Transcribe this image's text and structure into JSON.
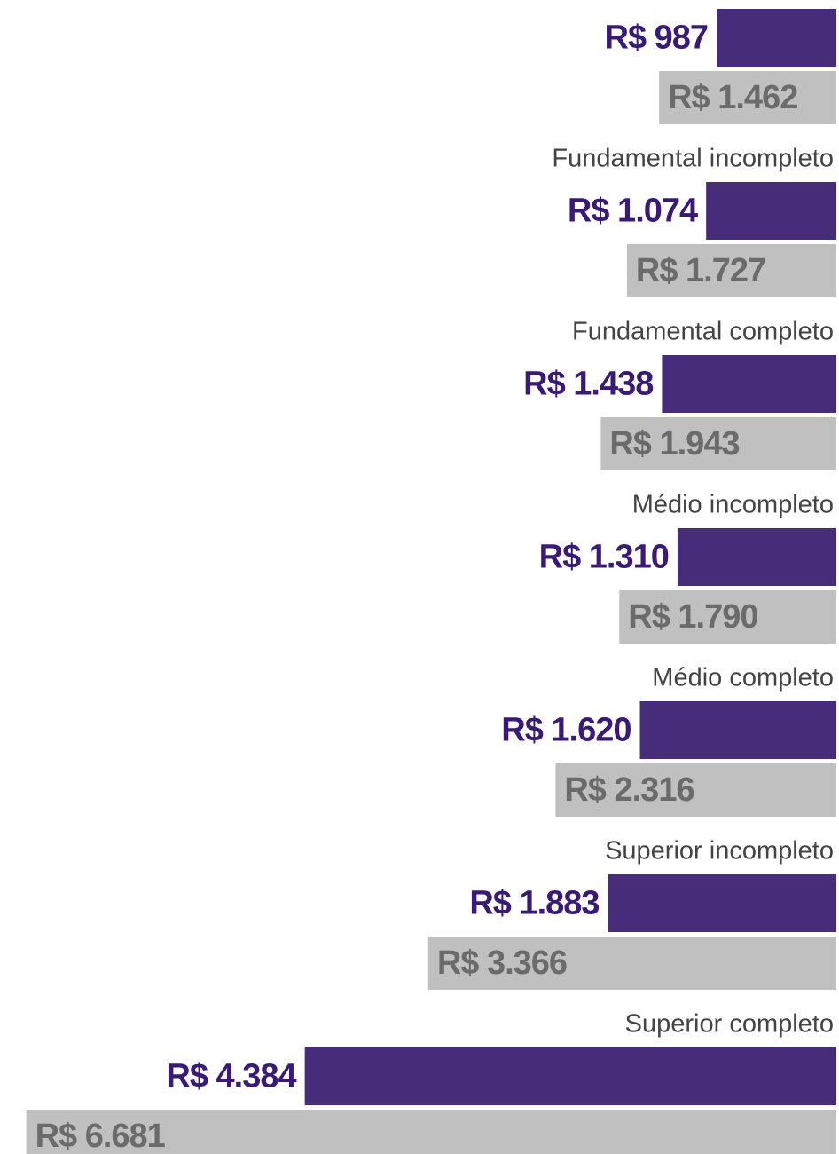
{
  "chart_data": {
    "type": "hbar",
    "categories": [
      null,
      "Fundamental incompleto",
      "Fundamental completo",
      "Médio incompleto",
      "Médio completo",
      "Superior incompleto",
      "Superior completo"
    ],
    "series": [
      {
        "color": "#472c7a",
        "values": [
          987,
          1074,
          1438,
          1310,
          1620,
          1883,
          4384
        ],
        "value_labels": [
          "R$ 987",
          "R$ 1.074",
          "R$ 1.438",
          "R$ 1.310",
          "R$ 1.620",
          "R$ 1.883",
          "R$ 4.384"
        ]
      },
      {
        "color": "#c0c0c0",
        "values": [
          1462,
          1727,
          1943,
          1790,
          2316,
          3366,
          6681
        ],
        "value_labels": [
          "R$ 1.462",
          "R$ 1.727",
          "R$ 1.943",
          "R$ 1.790",
          "R$ 2.316",
          "R$ 3.366",
          "R$ 6.681"
        ]
      }
    ],
    "xlim": [
      0,
      6700
    ]
  }
}
